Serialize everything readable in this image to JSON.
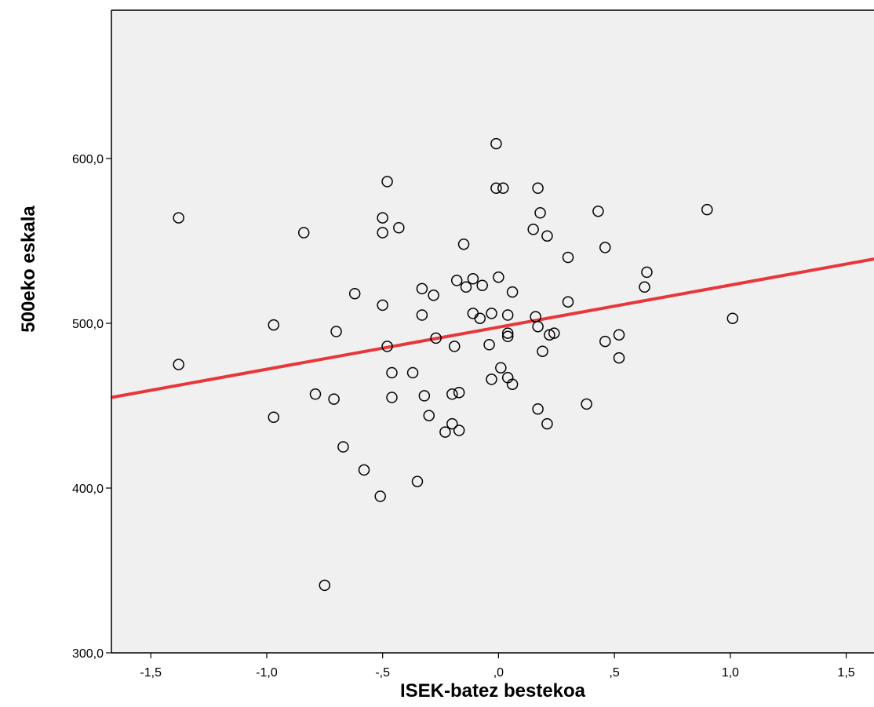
{
  "chart_data": {
    "type": "scatter",
    "xlabel": "ISEK-batez bestekoa",
    "ylabel": "500eko eskala",
    "xlim": [
      -1.67,
      1.62
    ],
    "ylim": [
      300,
      690
    ],
    "x_ticks": [
      {
        "value": -1.5,
        "label": "-1,5"
      },
      {
        "value": -1.0,
        "label": "-1,0"
      },
      {
        "value": -0.5,
        "label": "-,5"
      },
      {
        "value": 0.0,
        "label": ",0"
      },
      {
        "value": 0.5,
        "label": ",5"
      },
      {
        "value": 1.0,
        "label": "1,0"
      },
      {
        "value": 1.5,
        "label": "1,5"
      }
    ],
    "y_ticks": [
      {
        "value": 300,
        "label": "300,0"
      },
      {
        "value": 400,
        "label": "400,0"
      },
      {
        "value": 500,
        "label": "500,0"
      },
      {
        "value": 600,
        "label": "600,0"
      }
    ],
    "grid": false,
    "legend": "none",
    "colors": {
      "plot_background": "#f0f0f0",
      "fit_line": "#e8363a",
      "marker_edge": "#000000"
    },
    "fit_line": {
      "x": [
        -1.67,
        1.62
      ],
      "y": [
        455,
        539
      ]
    },
    "points": [
      {
        "x": -1.38,
        "y": 564
      },
      {
        "x": -1.38,
        "y": 475
      },
      {
        "x": -0.97,
        "y": 499
      },
      {
        "x": -0.97,
        "y": 443
      },
      {
        "x": -0.84,
        "y": 555
      },
      {
        "x": -0.79,
        "y": 457
      },
      {
        "x": -0.75,
        "y": 341
      },
      {
        "x": -0.71,
        "y": 454
      },
      {
        "x": -0.7,
        "y": 495
      },
      {
        "x": -0.67,
        "y": 425
      },
      {
        "x": -0.62,
        "y": 518
      },
      {
        "x": -0.58,
        "y": 411
      },
      {
        "x": -0.51,
        "y": 395
      },
      {
        "x": -0.5,
        "y": 564
      },
      {
        "x": -0.5,
        "y": 555
      },
      {
        "x": -0.5,
        "y": 511
      },
      {
        "x": -0.48,
        "y": 586
      },
      {
        "x": -0.48,
        "y": 486
      },
      {
        "x": -0.46,
        "y": 470
      },
      {
        "x": -0.46,
        "y": 455
      },
      {
        "x": -0.43,
        "y": 558
      },
      {
        "x": -0.37,
        "y": 470
      },
      {
        "x": -0.35,
        "y": 404
      },
      {
        "x": -0.33,
        "y": 521
      },
      {
        "x": -0.33,
        "y": 505
      },
      {
        "x": -0.32,
        "y": 456
      },
      {
        "x": -0.3,
        "y": 444
      },
      {
        "x": -0.28,
        "y": 517
      },
      {
        "x": -0.27,
        "y": 491
      },
      {
        "x": -0.23,
        "y": 434
      },
      {
        "x": -0.2,
        "y": 439
      },
      {
        "x": -0.2,
        "y": 457
      },
      {
        "x": -0.19,
        "y": 486
      },
      {
        "x": -0.18,
        "y": 526
      },
      {
        "x": -0.17,
        "y": 458
      },
      {
        "x": -0.17,
        "y": 435
      },
      {
        "x": -0.15,
        "y": 548
      },
      {
        "x": -0.14,
        "y": 522
      },
      {
        "x": -0.11,
        "y": 527
      },
      {
        "x": -0.11,
        "y": 506
      },
      {
        "x": -0.08,
        "y": 503
      },
      {
        "x": -0.07,
        "y": 523
      },
      {
        "x": -0.04,
        "y": 487
      },
      {
        "x": -0.03,
        "y": 506
      },
      {
        "x": -0.03,
        "y": 466
      },
      {
        "x": -0.01,
        "y": 609
      },
      {
        "x": -0.01,
        "y": 582
      },
      {
        "x": 0.0,
        "y": 528
      },
      {
        "x": 0.02,
        "y": 582
      },
      {
        "x": 0.01,
        "y": 473
      },
      {
        "x": 0.04,
        "y": 505
      },
      {
        "x": 0.04,
        "y": 494
      },
      {
        "x": 0.04,
        "y": 492
      },
      {
        "x": 0.04,
        "y": 467
      },
      {
        "x": 0.06,
        "y": 519
      },
      {
        "x": 0.06,
        "y": 463
      },
      {
        "x": 0.15,
        "y": 557
      },
      {
        "x": 0.16,
        "y": 504
      },
      {
        "x": 0.17,
        "y": 582
      },
      {
        "x": 0.17,
        "y": 498
      },
      {
        "x": 0.17,
        "y": 448
      },
      {
        "x": 0.18,
        "y": 567
      },
      {
        "x": 0.19,
        "y": 483
      },
      {
        "x": 0.21,
        "y": 553
      },
      {
        "x": 0.21,
        "y": 439
      },
      {
        "x": 0.22,
        "y": 493
      },
      {
        "x": 0.24,
        "y": 494
      },
      {
        "x": 0.3,
        "y": 540
      },
      {
        "x": 0.3,
        "y": 513
      },
      {
        "x": 0.38,
        "y": 451
      },
      {
        "x": 0.43,
        "y": 568
      },
      {
        "x": 0.46,
        "y": 546
      },
      {
        "x": 0.46,
        "y": 489
      },
      {
        "x": 0.52,
        "y": 493
      },
      {
        "x": 0.52,
        "y": 479
      },
      {
        "x": 0.63,
        "y": 522
      },
      {
        "x": 0.64,
        "y": 531
      },
      {
        "x": 0.9,
        "y": 569
      },
      {
        "x": 1.01,
        "y": 503
      }
    ]
  }
}
